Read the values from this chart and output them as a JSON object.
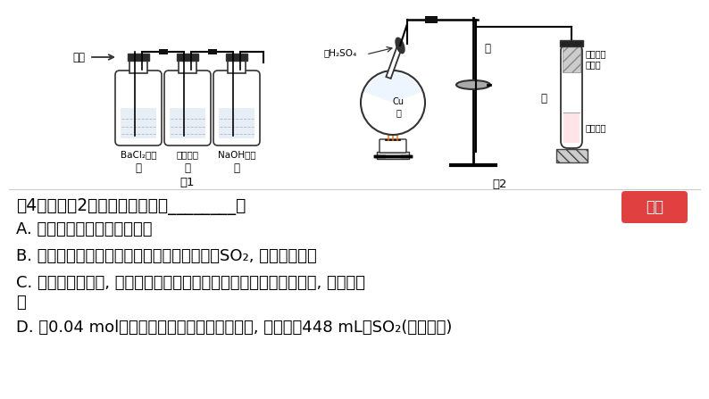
{
  "bg_color": "#ffffff",
  "question": "（4）有关图2实验说法正确的是________。",
  "answer_button": "解析",
  "answer_button_color": "#e04040",
  "options": [
    "A. 该反应中浓硫酸只体现酸性",
    "B. 试管乙中浸有碱液的棉花作用是吸收过量的SO₂, 防止环境污染",
    "C. 反应一段时间后, 将冷却后试管甲中的溶液缓慢倒入盛有水的烧杯, 溶液显蓝",
    "色",
    "D. 含0.04 mol溶质的浓硫酸与足量的铜片反应, 能收集到448 mL的SO₂(标准状况)"
  ],
  "font_size_question": 13.5,
  "font_size_option": 13,
  "text_color": "#000000",
  "fig1_bottles": [
    {
      "label1": "BaCl₂溶液",
      "label2": "甲"
    },
    {
      "label1": "品红溶液",
      "label2": "乙"
    },
    {
      "label1": "NaOH溶液",
      "label2": "丙"
    }
  ],
  "fig1_gas_label": "气体",
  "fig1_caption": "图1",
  "fig2_labels": {
    "acid": "浓H₂SO₄",
    "cu": "Cu\n片",
    "jia": "甲",
    "yi": "乙",
    "cotton": "浸有碱液\n的棉花",
    "pinred": "品红溶液",
    "caption": "图2"
  }
}
